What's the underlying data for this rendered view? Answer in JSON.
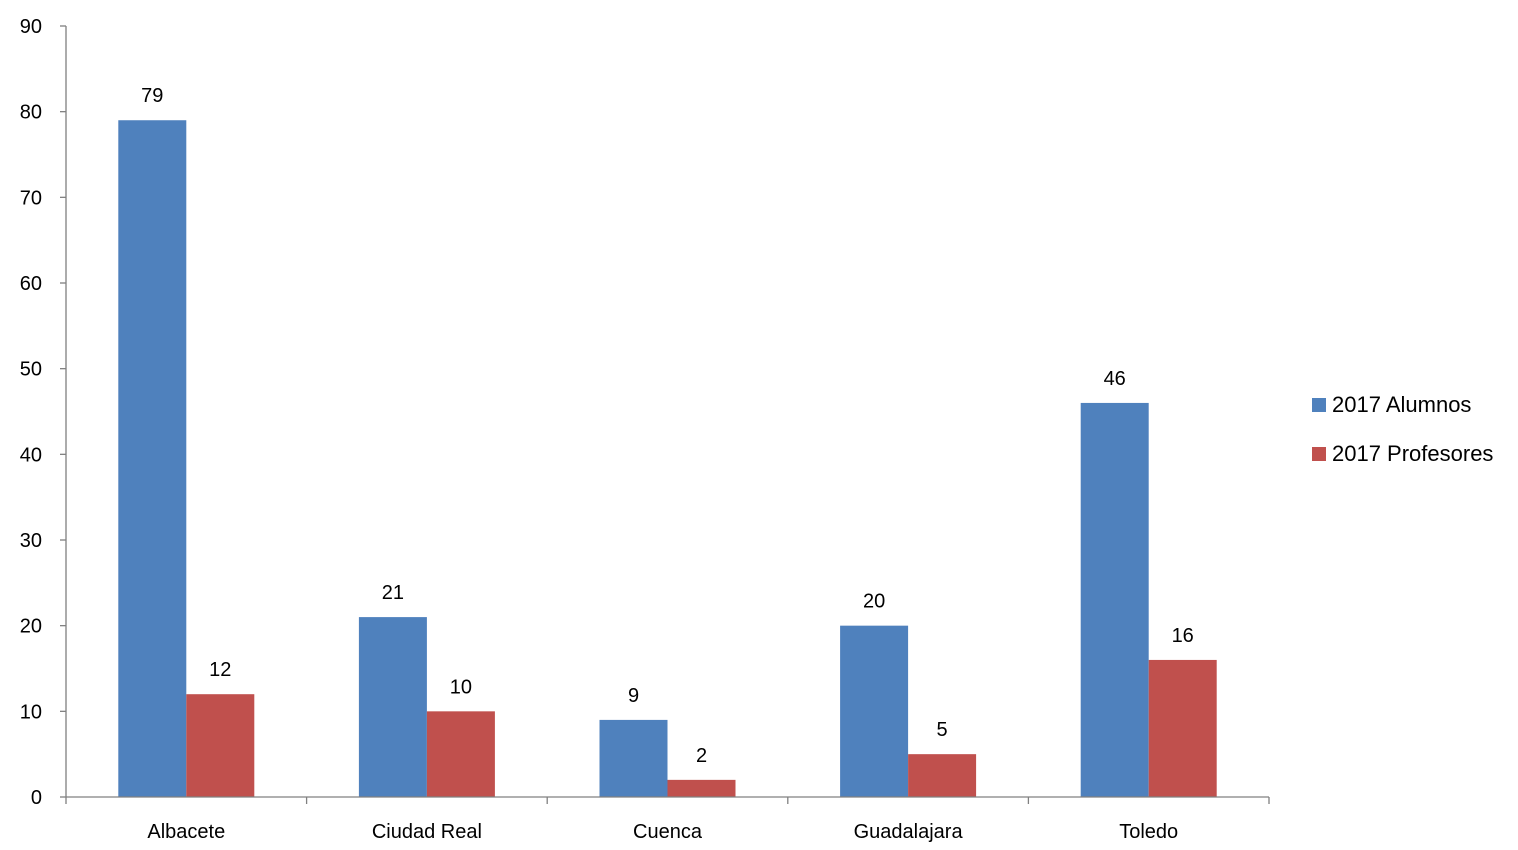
{
  "chart_data": {
    "type": "bar",
    "categories": [
      "Albacete",
      "Ciudad Real",
      "Cuenca",
      "Guadalajara",
      "Toledo"
    ],
    "series": [
      {
        "name": "2017 Alumnos",
        "values": [
          79,
          21,
          9,
          20,
          46
        ],
        "color": "#4F81BD"
      },
      {
        "name": "2017 Profesores",
        "values": [
          12,
          10,
          2,
          5,
          16
        ],
        "color": "#C0504D"
      }
    ],
    "ylim": [
      0,
      90
    ],
    "yticks": [
      0,
      10,
      20,
      30,
      40,
      50,
      60,
      70,
      80,
      90
    ],
    "data_labels": true,
    "grid": false,
    "legend_position": "right",
    "axis_color": "#808080"
  }
}
